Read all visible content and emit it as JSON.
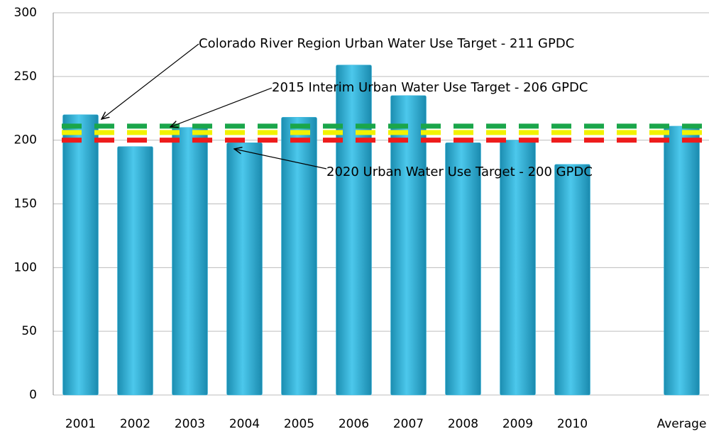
{
  "chart_data": {
    "type": "bar",
    "categories": [
      "2001",
      "2002",
      "2003",
      "2004",
      "2005",
      "2006",
      "2007",
      "2008",
      "2009",
      "2010",
      null,
      "Average"
    ],
    "values": [
      220,
      195,
      210,
      198,
      218,
      259,
      235,
      198,
      200,
      181,
      null,
      211
    ],
    "color": "#31b4dc",
    "ylim": [
      0,
      300
    ],
    "yticks": [
      0,
      50,
      100,
      150,
      200,
      250,
      300
    ],
    "grid": true,
    "reference_lines": [
      {
        "label": "Colorado River Region Urban Water Use Target  - 211 GPDC",
        "value": 211,
        "color": "#1aa64a"
      },
      {
        "label": "2015 Interim Urban Water Use Target  - 206 GPDC",
        "value": 206,
        "color": "#f2f200"
      },
      {
        "label": "2020 Urban Water Use Target  - 200 GPDC",
        "value": 200,
        "color": "#ee1c1c"
      }
    ]
  }
}
